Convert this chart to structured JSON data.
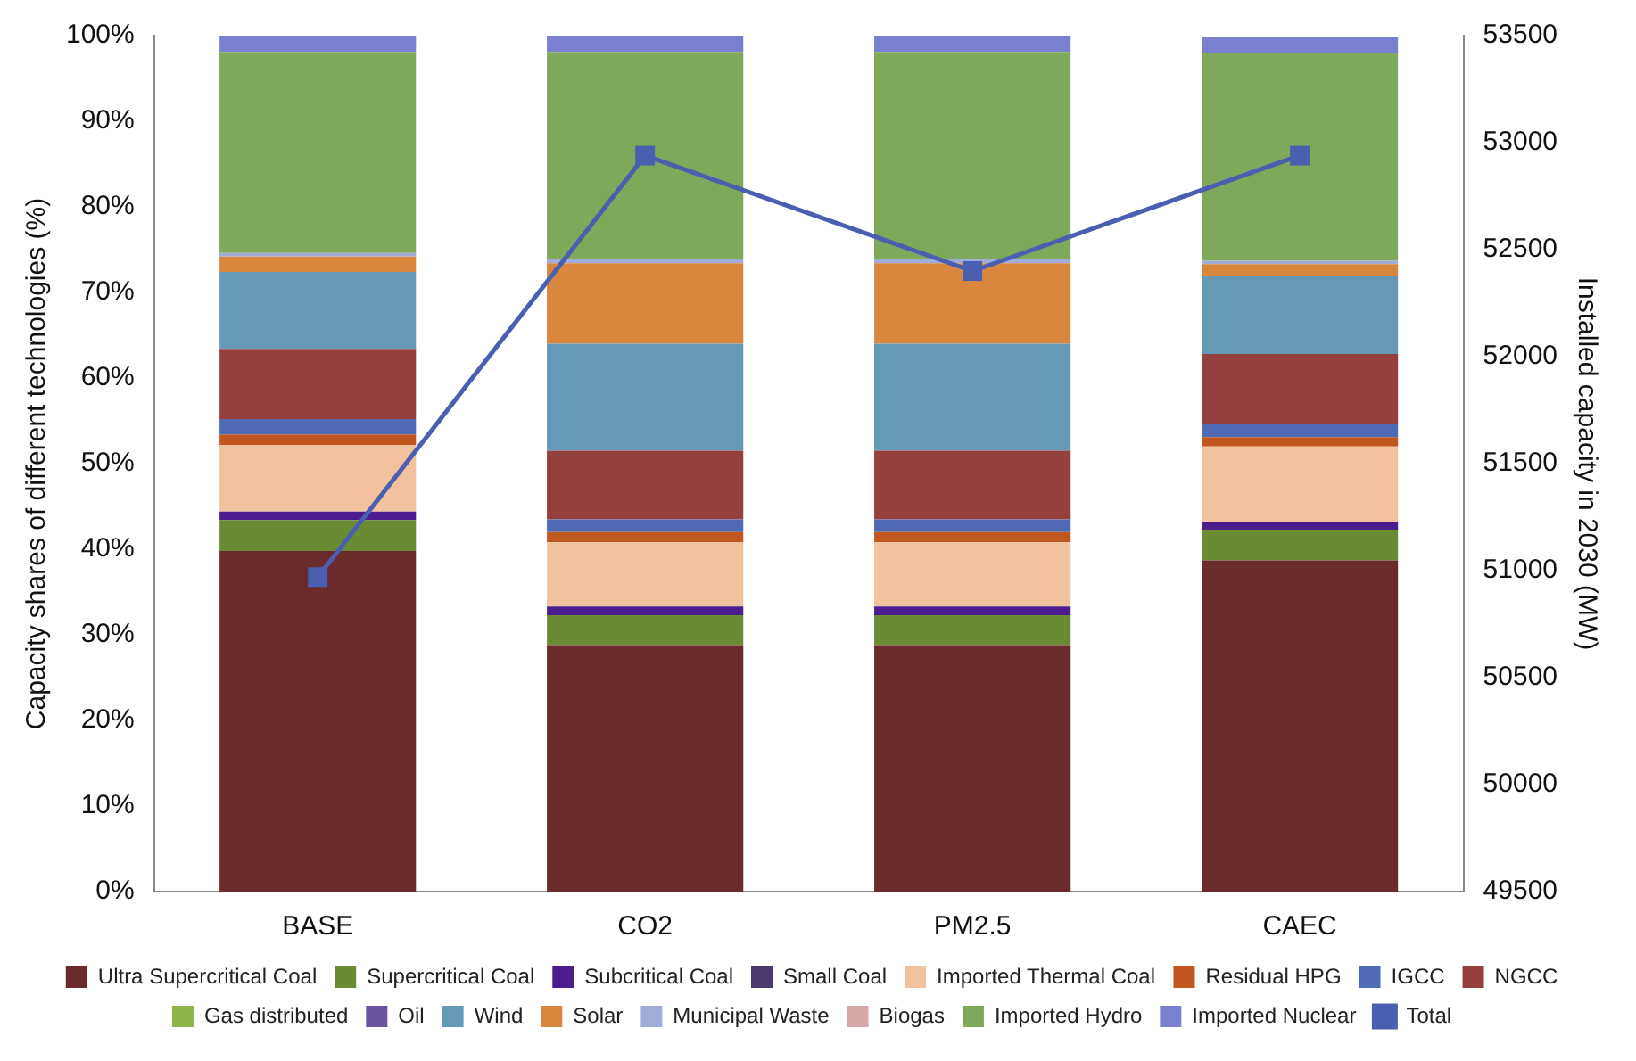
{
  "chart_data": {
    "type": "bar",
    "stacked": true,
    "ylabel": "Capacity shares of different technologies (%)",
    "y2label": "Installed capacity in 2030 (MW)",
    "categories": [
      "BASE",
      "CO2",
      "PM2.5",
      "CAEC"
    ],
    "series": [
      {
        "name": "Ultra Supercritical Coal",
        "color": "#6b2a2b",
        "values": [
          39.8,
          28.8,
          28.8,
          38.7
        ]
      },
      {
        "name": "Supercritical Coal",
        "color": "#6a8a33",
        "values": [
          3.6,
          3.5,
          3.5,
          3.6
        ]
      },
      {
        "name": "Subcritical Coal",
        "color": "#4b1d8f",
        "values": [
          1.0,
          1.0,
          1.0,
          0.9
        ]
      },
      {
        "name": "Small Coal",
        "color": "#4a3a6e",
        "values": [
          0,
          0,
          0,
          0
        ]
      },
      {
        "name": "Imported Thermal Coal",
        "color": "#f2c29e",
        "values": [
          7.8,
          7.5,
          7.5,
          8.8
        ]
      },
      {
        "name": "Residual HPG",
        "color": "#c0571e",
        "values": [
          1.2,
          1.2,
          1.2,
          1.1
        ]
      },
      {
        "name": "IGCC",
        "color": "#4f6bb5",
        "values": [
          1.8,
          1.5,
          1.5,
          1.6
        ]
      },
      {
        "name": "NGCC",
        "color": "#953f3f",
        "values": [
          8.2,
          8.0,
          8.0,
          8.1
        ]
      },
      {
        "name": "Gas distributed",
        "color": "#8db34a",
        "values": [
          0,
          0,
          0,
          0
        ]
      },
      {
        "name": "Oil",
        "color": "#6a54a0",
        "values": [
          0,
          0,
          0,
          0
        ]
      },
      {
        "name": "Wind",
        "color": "#6699b5",
        "values": [
          9.0,
          12.5,
          12.5,
          9.1
        ]
      },
      {
        "name": "Solar",
        "color": "#d9873f",
        "values": [
          1.8,
          9.4,
          9.4,
          1.4
        ]
      },
      {
        "name": "Municipal Waste",
        "color": "#a2acd8",
        "values": [
          0.4,
          0.5,
          0.5,
          0.4
        ]
      },
      {
        "name": "Biogas",
        "color": "#d6a8a8",
        "values": [
          0,
          0,
          0,
          0
        ]
      },
      {
        "name": "Imported Hydro",
        "color": "#7fa85a",
        "values": [
          23.5,
          24.2,
          24.2,
          24.3
        ]
      },
      {
        "name": "Imported Nuclear",
        "color": "#7b7fd0",
        "values": [
          1.9,
          1.9,
          1.9,
          1.9
        ]
      },
      {
        "name": "Total",
        "type": "line",
        "axis": "y2",
        "color": "#4a5fb0",
        "values": [
          50970,
          52940,
          52400,
          52940
        ]
      }
    ],
    "ylim": [
      0,
      100
    ],
    "yticks": [
      {
        "value": 0,
        "label": "0%"
      },
      {
        "value": 10,
        "label": "10%"
      },
      {
        "value": 20,
        "label": "20%"
      },
      {
        "value": 30,
        "label": "30%"
      },
      {
        "value": 40,
        "label": "40%"
      },
      {
        "value": 50,
        "label": "50%"
      },
      {
        "value": 60,
        "label": "60%"
      },
      {
        "value": 70,
        "label": "70%"
      },
      {
        "value": 80,
        "label": "80%"
      },
      {
        "value": 90,
        "label": "90%"
      },
      {
        "value": 100,
        "label": "100%"
      }
    ],
    "y2lim": [
      49500,
      53500
    ],
    "y2ticks": [
      49500,
      50000,
      50500,
      51000,
      51500,
      52000,
      52500,
      53000,
      53500
    ],
    "grid": false,
    "legend": "bottom",
    "marker": "square",
    "line_style": "solid"
  }
}
